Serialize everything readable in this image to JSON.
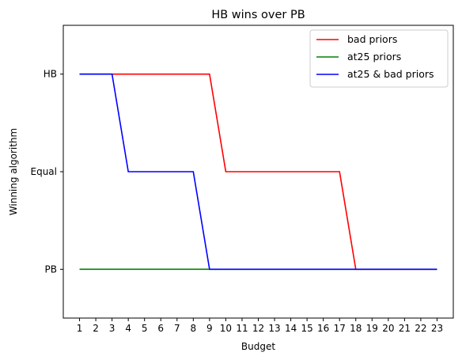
{
  "chart_data": {
    "type": "line",
    "title": "HB wins over PB",
    "xlabel": "Budget",
    "ylabel": "Winning algorithm",
    "x": [
      1,
      2,
      3,
      4,
      5,
      6,
      7,
      8,
      9,
      10,
      11,
      12,
      13,
      14,
      15,
      16,
      17,
      18,
      19,
      20,
      21,
      22,
      23
    ],
    "x_tick_labels": [
      "1",
      "2",
      "3",
      "4",
      "5",
      "6",
      "7",
      "8",
      "9",
      "10",
      "11",
      "12",
      "13",
      "14",
      "15",
      "16",
      "17",
      "18",
      "19",
      "20",
      "21",
      "22",
      "23"
    ],
    "y_categories": [
      "PB",
      "Equal",
      "HB"
    ],
    "ylim": [
      -0.5,
      2.5
    ],
    "xlim": [
      0,
      24
    ],
    "grid": false,
    "legend_position": "top-right",
    "series": [
      {
        "name": "bad priors",
        "color": "#ff0000",
        "values": [
          2,
          2,
          2,
          2,
          2,
          2,
          2,
          2,
          2,
          1,
          1,
          1,
          1,
          1,
          1,
          1,
          1,
          0,
          0,
          0,
          0,
          0,
          0
        ]
      },
      {
        "name": "at25 priors",
        "color": "#008000",
        "values": [
          0,
          0,
          0,
          0,
          0,
          0,
          0,
          0,
          0,
          0,
          0,
          0,
          0,
          0,
          0,
          0,
          0,
          0,
          0,
          0,
          0,
          0,
          0
        ]
      },
      {
        "name": "at25 & bad priors",
        "color": "#0000ff",
        "values": [
          2,
          2,
          2,
          1,
          1,
          1,
          1,
          1,
          0,
          0,
          0,
          0,
          0,
          0,
          0,
          0,
          0,
          0,
          0,
          0,
          0,
          0,
          0
        ]
      }
    ]
  }
}
